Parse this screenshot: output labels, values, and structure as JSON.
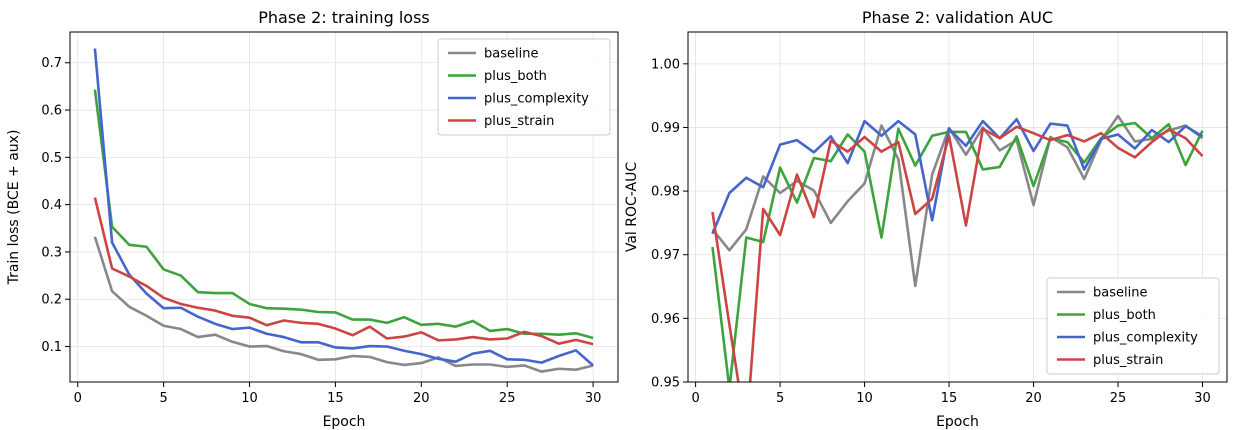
{
  "chart_data": [
    {
      "type": "line",
      "title": "Phase 2: training loss",
      "xlabel": "Epoch",
      "ylabel": "Train loss (BCE + aux)",
      "xlim": [
        -0.45,
        31.45
      ],
      "ylim": [
        0.025,
        0.765
      ],
      "xticks": [
        0,
        5,
        10,
        15,
        20,
        25,
        30
      ],
      "yticks": [
        0.1,
        0.2,
        0.3,
        0.4,
        0.5,
        0.6,
        0.7
      ],
      "ytick_labels": [
        "0.1",
        "0.2",
        "0.3",
        "0.4",
        "0.5",
        "0.6",
        "0.7"
      ],
      "grid": true,
      "legend_position": "top-right",
      "x": [
        1,
        2,
        3,
        4,
        5,
        6,
        7,
        8,
        9,
        10,
        11,
        12,
        13,
        14,
        15,
        16,
        17,
        18,
        19,
        20,
        21,
        22,
        23,
        24,
        25,
        26,
        27,
        28,
        29,
        30
      ],
      "series": [
        {
          "name": "baseline",
          "color": "#888888",
          "values": [
            0.332,
            0.217,
            0.184,
            0.165,
            0.144,
            0.137,
            0.12,
            0.125,
            0.11,
            0.1,
            0.101,
            0.09,
            0.084,
            0.072,
            0.073,
            0.08,
            0.078,
            0.067,
            0.061,
            0.065,
            0.077,
            0.059,
            0.062,
            0.062,
            0.057,
            0.06,
            0.047,
            0.053,
            0.051,
            0.06
          ]
        },
        {
          "name": "plus_both",
          "color": "#3da33d",
          "values": [
            0.643,
            0.353,
            0.315,
            0.311,
            0.263,
            0.25,
            0.215,
            0.213,
            0.213,
            0.19,
            0.181,
            0.18,
            0.178,
            0.173,
            0.172,
            0.157,
            0.157,
            0.15,
            0.162,
            0.146,
            0.148,
            0.142,
            0.154,
            0.133,
            0.137,
            0.127,
            0.127,
            0.125,
            0.128,
            0.118
          ]
        },
        {
          "name": "plus_complexity",
          "color": "#4466cc",
          "values": [
            0.73,
            0.32,
            0.252,
            0.212,
            0.181,
            0.182,
            0.163,
            0.148,
            0.137,
            0.14,
            0.127,
            0.12,
            0.109,
            0.109,
            0.098,
            0.096,
            0.101,
            0.1,
            0.091,
            0.084,
            0.074,
            0.068,
            0.085,
            0.091,
            0.073,
            0.072,
            0.066,
            0.08,
            0.092,
            0.06
          ]
        },
        {
          "name": "plus_strain",
          "color": "#cc4444",
          "values": [
            0.415,
            0.265,
            0.248,
            0.228,
            0.203,
            0.19,
            0.182,
            0.176,
            0.165,
            0.161,
            0.145,
            0.155,
            0.15,
            0.148,
            0.138,
            0.124,
            0.142,
            0.117,
            0.121,
            0.13,
            0.113,
            0.115,
            0.12,
            0.115,
            0.117,
            0.131,
            0.122,
            0.106,
            0.114,
            0.105
          ]
        }
      ]
    },
    {
      "type": "line",
      "title": "Phase 2: validation AUC",
      "xlabel": "Epoch",
      "ylabel": "Val ROC-AUC",
      "xlim": [
        -0.45,
        31.45
      ],
      "ylim": [
        0.95,
        1.005
      ],
      "xticks": [
        0,
        5,
        10,
        15,
        20,
        25,
        30
      ],
      "yticks": [
        0.95,
        0.96,
        0.97,
        0.98,
        0.99,
        1.0
      ],
      "ytick_labels": [
        "0.95",
        "0.96",
        "0.97",
        "0.98",
        "0.99",
        "1.00"
      ],
      "grid": true,
      "legend_position": "bottom-right",
      "x": [
        1,
        2,
        3,
        4,
        5,
        6,
        7,
        8,
        9,
        10,
        11,
        12,
        13,
        14,
        15,
        16,
        17,
        18,
        19,
        20,
        21,
        22,
        23,
        24,
        25,
        26,
        27,
        28,
        29,
        30
      ],
      "series": [
        {
          "name": "baseline",
          "color": "#888888",
          "values": [
            0.974,
            0.9707,
            0.974,
            0.9823,
            0.9797,
            0.9816,
            0.9801,
            0.975,
            0.9784,
            0.9812,
            0.9903,
            0.985,
            0.9651,
            0.9826,
            0.9899,
            0.9857,
            0.99,
            0.9864,
            0.988,
            0.9778,
            0.9885,
            0.9869,
            0.9819,
            0.988,
            0.9918,
            0.9878,
            0.9882,
            0.9895,
            0.9903,
            0.9883
          ]
        },
        {
          "name": "plus_both",
          "color": "#3da33d",
          "values": [
            0.9712,
            0.949,
            0.9727,
            0.972,
            0.9837,
            0.9782,
            0.9852,
            0.9847,
            0.9889,
            0.9862,
            0.9727,
            0.9898,
            0.984,
            0.9887,
            0.9893,
            0.9893,
            0.9834,
            0.9838,
            0.9886,
            0.9808,
            0.9883,
            0.9877,
            0.9845,
            0.9883,
            0.9903,
            0.9907,
            0.9883,
            0.9905,
            0.9841,
            0.9895
          ]
        },
        {
          "name": "plus_complexity",
          "color": "#4466cc",
          "values": [
            0.9733,
            0.9797,
            0.9821,
            0.9806,
            0.9873,
            0.988,
            0.9861,
            0.9886,
            0.9844,
            0.991,
            0.9887,
            0.991,
            0.9889,
            0.9754,
            0.9898,
            0.9871,
            0.991,
            0.9883,
            0.9913,
            0.9863,
            0.9906,
            0.9903,
            0.9834,
            0.9882,
            0.9889,
            0.9867,
            0.9896,
            0.9877,
            0.9902,
            0.9886
          ]
        },
        {
          "name": "plus_strain",
          "color": "#cc4444",
          "values": [
            0.9767,
            0.959,
            0.942,
            0.9772,
            0.9731,
            0.9826,
            0.9759,
            0.9879,
            0.9862,
            0.9885,
            0.9862,
            0.9877,
            0.9764,
            0.9788,
            0.9887,
            0.9746,
            0.9898,
            0.9883,
            0.9901,
            0.9891,
            0.988,
            0.9888,
            0.9878,
            0.9891,
            0.9868,
            0.9853,
            0.9877,
            0.9897,
            0.9883,
            0.9855
          ]
        }
      ]
    }
  ]
}
